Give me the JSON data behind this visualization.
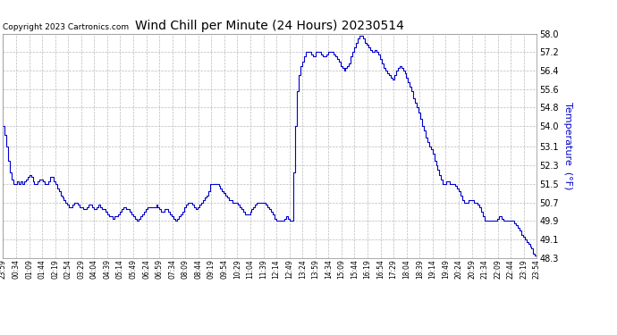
{
  "title": "Wind Chill per Minute (24 Hours) 20230514",
  "ylabel": "Temperature  (°F)",
  "copyright_text": "Copyright 2023 Cartronics.com",
  "line_color": "#0000cc",
  "ylabel_color": "#0000cc",
  "background_color": "#ffffff",
  "grid_color": "#bbbbbb",
  "ylim": [
    48.3,
    58.0
  ],
  "yticks": [
    48.3,
    49.1,
    49.9,
    50.7,
    51.5,
    52.3,
    53.1,
    54.0,
    54.8,
    55.6,
    56.4,
    57.2,
    58.0
  ],
  "x_labels": [
    "23:59",
    "00:34",
    "01:09",
    "01:44",
    "02:19",
    "02:54",
    "03:29",
    "04:04",
    "04:39",
    "05:14",
    "05:49",
    "06:24",
    "06:59",
    "07:34",
    "08:09",
    "08:44",
    "09:19",
    "09:54",
    "10:29",
    "11:04",
    "11:39",
    "12:14",
    "12:49",
    "13:24",
    "13:59",
    "14:34",
    "15:09",
    "15:44",
    "16:19",
    "16:54",
    "17:29",
    "18:04",
    "18:39",
    "19:14",
    "19:49",
    "20:24",
    "20:59",
    "21:34",
    "22:09",
    "22:44",
    "23:19",
    "23:54"
  ],
  "data_y": [
    54.0,
    53.6,
    53.1,
    52.5,
    52.0,
    51.7,
    51.5,
    51.5,
    51.6,
    51.5,
    51.6,
    51.5,
    51.6,
    51.7,
    51.8,
    51.9,
    51.8,
    51.6,
    51.5,
    51.5,
    51.6,
    51.7,
    51.7,
    51.6,
    51.5,
    51.5,
    51.6,
    51.8,
    51.8,
    51.6,
    51.5,
    51.3,
    51.2,
    51.0,
    50.9,
    50.8,
    50.7,
    50.6,
    50.5,
    50.5,
    50.6,
    50.7,
    50.7,
    50.6,
    50.5,
    50.5,
    50.4,
    50.4,
    50.5,
    50.6,
    50.6,
    50.5,
    50.4,
    50.4,
    50.5,
    50.6,
    50.5,
    50.4,
    50.4,
    50.3,
    50.2,
    50.1,
    50.1,
    50.0,
    50.1,
    50.1,
    50.2,
    50.3,
    50.4,
    50.5,
    50.5,
    50.4,
    50.4,
    50.3,
    50.2,
    50.1,
    50.0,
    49.9,
    50.0,
    50.1,
    50.2,
    50.3,
    50.4,
    50.5,
    50.5,
    50.5,
    50.5,
    50.5,
    50.6,
    50.5,
    50.4,
    50.3,
    50.3,
    50.4,
    50.4,
    50.3,
    50.2,
    50.1,
    50.0,
    49.9,
    50.0,
    50.1,
    50.2,
    50.3,
    50.5,
    50.6,
    50.7,
    50.7,
    50.7,
    50.6,
    50.5,
    50.4,
    50.5,
    50.6,
    50.7,
    50.8,
    50.9,
    51.0,
    51.2,
    51.5,
    51.5,
    51.5,
    51.5,
    51.5,
    51.4,
    51.3,
    51.2,
    51.1,
    51.0,
    50.9,
    50.8,
    50.8,
    50.7,
    50.7,
    50.7,
    50.6,
    50.5,
    50.4,
    50.3,
    50.2,
    50.2,
    50.2,
    50.3,
    50.4,
    50.5,
    50.6,
    50.7,
    50.7,
    50.7,
    50.7,
    50.7,
    50.6,
    50.5,
    50.4,
    50.3,
    50.2,
    50.0,
    49.9,
    49.9,
    49.9,
    49.9,
    49.9,
    50.0,
    50.1,
    50.0,
    49.9,
    49.9,
    52.0,
    54.0,
    55.5,
    56.2,
    56.6,
    56.8,
    57.0,
    57.2,
    57.2,
    57.2,
    57.1,
    57.0,
    57.0,
    57.2,
    57.2,
    57.2,
    57.1,
    57.0,
    57.0,
    57.1,
    57.2,
    57.2,
    57.2,
    57.1,
    57.0,
    56.9,
    56.8,
    56.6,
    56.5,
    56.4,
    56.5,
    56.6,
    56.7,
    57.0,
    57.2,
    57.4,
    57.6,
    57.8,
    57.9,
    57.9,
    57.8,
    57.6,
    57.5,
    57.4,
    57.3,
    57.2,
    57.2,
    57.3,
    57.2,
    57.1,
    56.9,
    56.7,
    56.5,
    56.4,
    56.3,
    56.2,
    56.1,
    56.0,
    56.2,
    56.4,
    56.5,
    56.6,
    56.5,
    56.4,
    56.3,
    56.1,
    55.9,
    55.7,
    55.5,
    55.2,
    55.0,
    54.8,
    54.6,
    54.3,
    54.0,
    53.8,
    53.5,
    53.3,
    53.1,
    53.0,
    52.8,
    52.5,
    52.3,
    52.1,
    51.9,
    51.7,
    51.5,
    51.5,
    51.6,
    51.6,
    51.5,
    51.5,
    51.5,
    51.4,
    51.3,
    51.2,
    51.0,
    50.8,
    50.7,
    50.7,
    50.7,
    50.8,
    50.8,
    50.8,
    50.7,
    50.7,
    50.6,
    50.5,
    50.3,
    50.1,
    49.9,
    49.9,
    49.9,
    49.9,
    49.9,
    49.9,
    49.9,
    50.0,
    50.1,
    50.1,
    50.0,
    49.9,
    49.9,
    49.9,
    49.9,
    49.9,
    49.9,
    49.8,
    49.7,
    49.6,
    49.5,
    49.3,
    49.2,
    49.1,
    49.0,
    48.9,
    48.8,
    48.7,
    48.5,
    48.4,
    48.3
  ]
}
